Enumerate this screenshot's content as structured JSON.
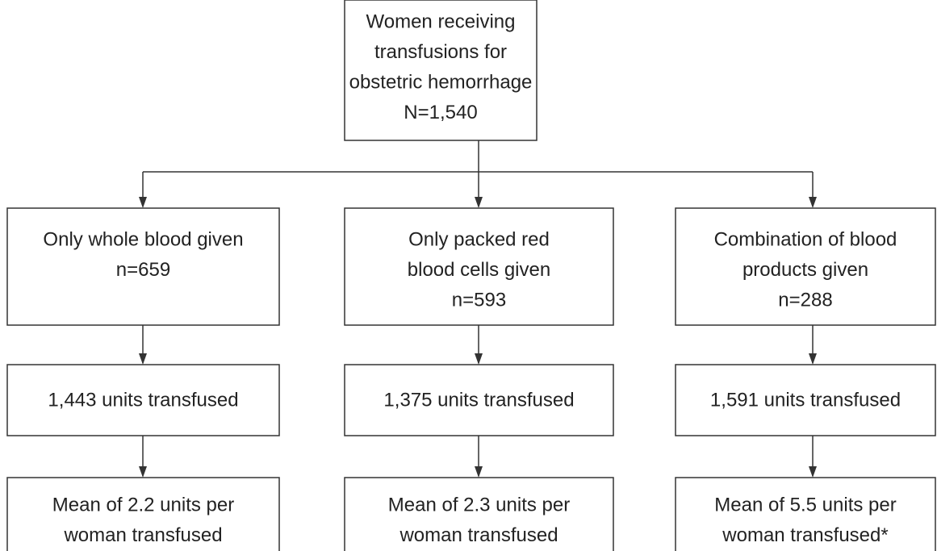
{
  "nodes": [
    {
      "lines": [
        "Women receiving",
        "transfusions for",
        "obstetric hemorrhage",
        "N=1,540"
      ]
    },
    {
      "lines": [
        "Only whole blood given",
        "n=659"
      ]
    },
    {
      "lines": [
        "Only packed red",
        "blood cells given",
        "n=593"
      ]
    },
    {
      "lines": [
        "Combination of blood",
        "products given",
        "n=288"
      ]
    },
    {
      "lines": [
        "1,443 units transfused"
      ]
    },
    {
      "lines": [
        "1,375 units transfused"
      ]
    },
    {
      "lines": [
        "1,591 units transfused"
      ]
    },
    {
      "lines": [
        "Mean of 2.2 units per",
        "woman transfused"
      ]
    },
    {
      "lines": [
        "Mean of 2.3 units per",
        "woman transfused"
      ]
    },
    {
      "lines": [
        "Mean of 5.5 units per",
        "woman transfused*"
      ]
    }
  ]
}
